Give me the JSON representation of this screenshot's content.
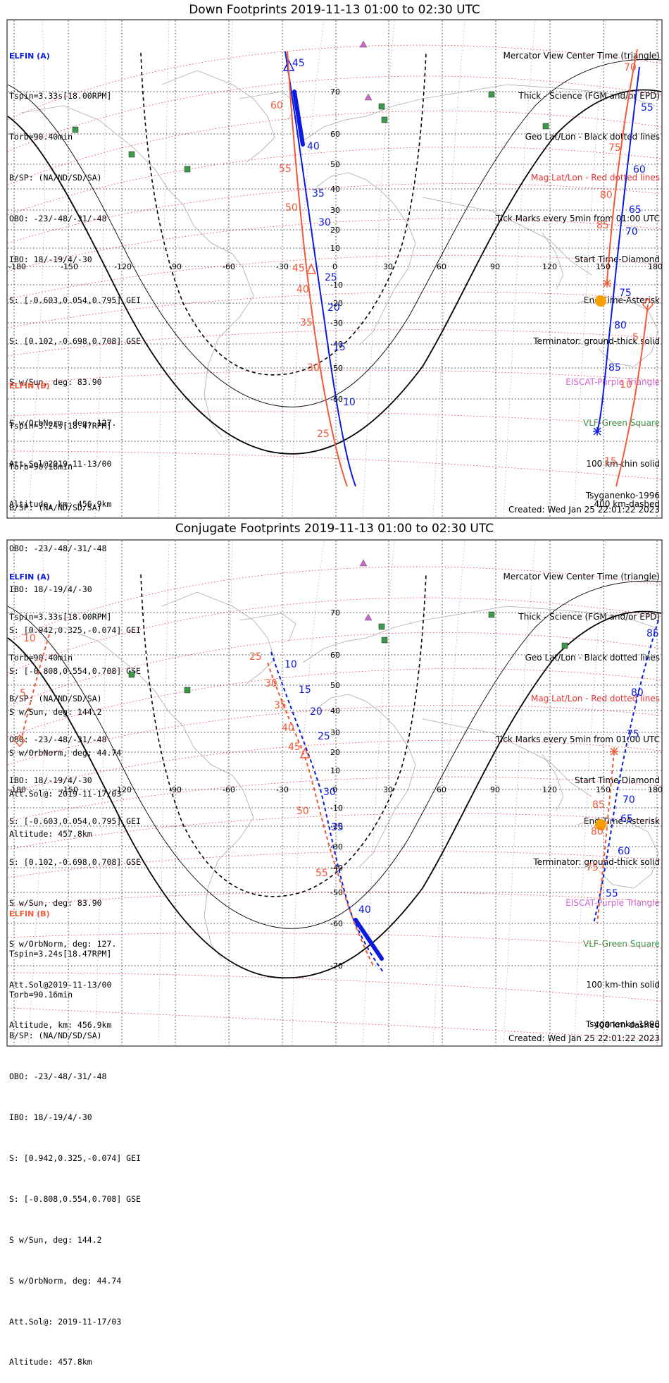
{
  "panels": [
    {
      "title": "Down Footprints 2019-11-13 01:00 to 02:30 UTC",
      "elfin_a": {
        "header": "ELFIN (A)",
        "lines": [
          "Tspin=3.33s[18.00RPM]",
          "Torb=90.40min",
          "B/SP: (NA/ND/SD/SA)",
          "OBO: -23/-48/-31/-48",
          "IBO: 18/-19/4/-30",
          "S: [-0.603,0.054,0.795] GEI",
          "S: [0.102,-0.698,0.708] GSE",
          "S w/Sun, deg: 83.90",
          "S w/OrbNorm, deg: 127.",
          "Att.Sol@2019-11-13/00",
          "Altitude, km: 456.9km"
        ]
      },
      "elfin_b": {
        "header": "ELFIN (B)",
        "lines": [
          "Tspin=3.24s[18.47RPM]",
          "Torb=90.16min",
          "B/SP: (NA/ND/SD/SA)",
          "OBO: -23/-48/-31/-48",
          "IBO: 18/-19/4/-30",
          "S: [0.942,0.325,-0.074] GEI",
          "S: [-0.808,0.554,0.708] GSE",
          "S w/Sun, deg: 144.2",
          "S w/OrbNorm, deg: 44.74",
          "Att.Sol@: 2019-11-17/03",
          "Altitude: 457.8km"
        ]
      },
      "legend": [
        "Mercator View Center Time (triangle)",
        "Thick - Science (FGM and/or EPD)",
        "Geo Lat/Lon - Black dotted lines",
        "Mag Lat/Lon - Red dotted lines",
        "Tick Marks every 5min from 01:00 UTC",
        "Start Time-Diamond",
        "End Time-Asterisk",
        "Terminator: ground-thick solid",
        "EISCAT-Purple Triangle",
        "VLF-Green Square",
        "100 km-thin solid",
        "400 km-dashed"
      ],
      "model": "Tsyganenko-1996",
      "created": "Created: Wed Jan 25 22:01:22 2023",
      "lon_labels": [
        "-180",
        "-150",
        "-120",
        "-90",
        "-60",
        "-30",
        "0",
        "30",
        "60",
        "90",
        "120",
        "150",
        "180"
      ],
      "lat_labels": [
        "70",
        "60",
        "50",
        "40",
        "30",
        "20",
        "10",
        "-10",
        "-20",
        "-30",
        "-40",
        "-50",
        "-60"
      ],
      "ticks_a": [
        "45",
        "40",
        "35",
        "30",
        "25",
        "20",
        "15",
        "10",
        "55",
        "60",
        "65",
        "70",
        "75",
        "80",
        "85"
      ],
      "ticks_b": [
        "60",
        "55",
        "50",
        "45",
        "40",
        "35",
        "30",
        "25",
        "70",
        "75",
        "80",
        "85",
        "5",
        "10",
        "15"
      ]
    },
    {
      "title": "Conjugate Footprints 2019-11-13 01:00 to 02:30 UTC",
      "elfin_a": {
        "header": "ELFIN (A)",
        "lines": [
          "Tspin=3.33s[18.00RPM]",
          "Torb=90.40min",
          "B/SP: (NA/ND/SD/SA)",
          "OBO: -23/-48/-31/-48",
          "IBO: 18/-19/4/-30",
          "S: [-0.603,0.054,0.795] GEI",
          "S: [0.102,-0.698,0.708] GSE",
          "S w/Sun, deg: 83.90",
          "S w/OrbNorm, deg: 127.",
          "Att.Sol@2019-11-13/00",
          "Altitude, km: 456.9km"
        ]
      },
      "elfin_b": {
        "header": "ELFIN (B)",
        "lines": [
          "Tspin=3.24s[18.47RPM]",
          "Torb=90.16min",
          "B/SP: (NA/ND/SD/SA)",
          "OBO: -23/-48/-31/-48",
          "IBO: 18/-19/4/-30",
          "S: [0.942,0.325,-0.074] GEI",
          "S: [-0.808,0.554,0.708] GSE",
          "S w/Sun, deg: 144.2",
          "S w/OrbNorm, deg: 44.74",
          "Att.Sol@: 2019-11-17/03",
          "Altitude: 457.8km"
        ]
      },
      "legend": [
        "Mercator View Center Time (triangle)",
        "Thick - Science (FGM and/or EPD)",
        "Geo Lat/Lon - Black dotted lines",
        "Mag Lat/Lon - Red dotted lines",
        "Tick Marks every 5min from 01:00 UTC",
        "Start Time-Diamond",
        "End Time-Asterisk",
        "Terminator: ground-thick solid",
        "EISCAT-Purple Triangle",
        "VLF-Green Square",
        "100 km-thin solid",
        "400 km-dashed"
      ],
      "model": "Tsyganenko-1996",
      "created": "Created: Wed Jan 25 22:01:22 2023",
      "lon_labels": [
        "-180",
        "-150",
        "-120",
        "-90",
        "-60",
        "-30",
        "0",
        "30",
        "60",
        "90",
        "120",
        "150",
        "180"
      ],
      "lat_labels": [
        "70",
        "60",
        "50",
        "40",
        "30",
        "20",
        "10",
        "-10",
        "-20",
        "-30",
        "-40",
        "-50",
        "-60",
        "-70"
      ],
      "ticks_a": [
        "10",
        "15",
        "20",
        "25",
        "30",
        "35",
        "40",
        "55",
        "60",
        "65",
        "70",
        "75",
        "80",
        "85"
      ],
      "ticks_b": [
        "25",
        "30",
        "35",
        "40",
        "45",
        "50",
        "55",
        "85",
        "80",
        "75",
        "10",
        "5"
      ]
    }
  ],
  "colors": {
    "elfin_a": "#0a1adf",
    "elfin_b": "#f05a3a",
    "mag_grid": "#e33333",
    "eiscat": "#cc66cc",
    "vlf": "#3a9a4a",
    "sun": "#f5a000"
  }
}
